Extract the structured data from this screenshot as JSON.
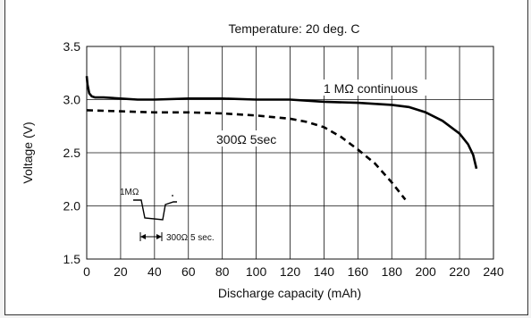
{
  "chart_data": {
    "type": "line",
    "title": "Temperature: 20 deg. C",
    "xlabel": "Discharge capacity (mAh)",
    "ylabel": "Voltage (V)",
    "xlim": [
      0,
      240
    ],
    "ylim": [
      1.5,
      3.5
    ],
    "xticks": [
      "0",
      "20",
      "40",
      "60",
      "80",
      "100",
      "120",
      "140",
      "160",
      "180",
      "200",
      "220",
      "240"
    ],
    "yticks": [
      "1.5",
      "2.0",
      "2.5",
      "3.0",
      "3.5"
    ],
    "grid": true,
    "series": [
      {
        "name": "1 MΩ continuous",
        "style": "solid",
        "x": [
          0,
          0.5,
          1.5,
          3,
          5,
          10,
          20,
          30,
          40,
          60,
          70,
          80,
          100,
          120,
          140,
          160,
          180,
          190,
          200,
          210,
          220,
          225,
          228,
          230
        ],
        "y": [
          3.22,
          3.14,
          3.06,
          3.03,
          3.02,
          3.02,
          3.01,
          3.0,
          3.0,
          3.01,
          3.01,
          3.01,
          3.0,
          3.0,
          2.98,
          2.97,
          2.95,
          2.93,
          2.88,
          2.8,
          2.68,
          2.58,
          2.48,
          2.35
        ]
      },
      {
        "name": "300Ω 5sec",
        "style": "dashed",
        "x": [
          0,
          20,
          40,
          60,
          80,
          100,
          120,
          130,
          140,
          150,
          160,
          170,
          180,
          188
        ],
        "y": [
          2.9,
          2.89,
          2.88,
          2.88,
          2.87,
          2.85,
          2.82,
          2.79,
          2.74,
          2.65,
          2.53,
          2.4,
          2.22,
          2.06
        ]
      }
    ],
    "annotations": {
      "inset_upper": "1MΩ",
      "inset_lower": "300Ω 5 sec."
    }
  }
}
